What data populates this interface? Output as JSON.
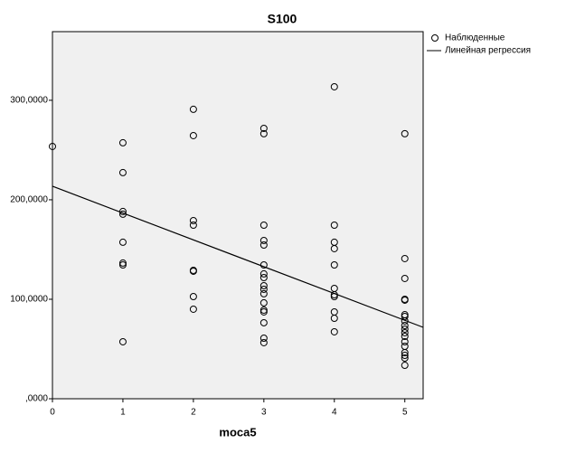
{
  "chart_data": {
    "type": "scatter",
    "title": "S100",
    "x_label": "moca5",
    "xlim": [
      0,
      5.26
    ],
    "xticks": [
      0,
      1,
      2,
      3,
      4,
      5
    ],
    "ylim": [
      0,
      369000
    ],
    "yticks": [
      {
        "value": 0,
        "label": ",0000"
      },
      {
        "value": 100000,
        "label": "100,0000"
      },
      {
        "value": 200000,
        "label": "200,0000"
      },
      {
        "value": 300000,
        "label": "300,0000"
      }
    ],
    "plot_background": "#f0f0f0",
    "series": [
      {
        "name": "Наблюденные",
        "type": "scatter",
        "color": "#000000",
        "x": [
          0,
          1,
          1,
          1,
          1,
          1,
          1,
          1,
          1,
          2,
          2,
          2,
          2,
          2,
          2,
          2,
          2,
          3,
          3,
          3,
          3,
          3,
          3,
          3,
          3,
          3,
          3,
          3,
          3,
          3,
          3,
          3,
          3,
          3,
          4,
          4,
          4,
          4,
          4,
          4,
          4,
          4,
          4,
          4,
          4,
          5,
          5,
          5,
          5,
          5,
          5,
          5,
          5,
          5,
          5,
          5,
          5,
          5,
          5,
          5,
          5,
          5,
          5
        ],
        "values": [
          253600,
          257300,
          227300,
          188200,
          185500,
          157300,
          136400,
          134500,
          57300,
          290900,
          264500,
          179100,
          174500,
          129100,
          128200,
          102700,
          90000,
          271800,
          266400,
          174500,
          159100,
          154500,
          134500,
          125500,
          121800,
          113600,
          110000,
          105500,
          96400,
          89100,
          87300,
          76400,
          60900,
          56400,
          313600,
          174500,
          157300,
          150900,
          134500,
          110900,
          104500,
          102700,
          87300,
          80900,
          67300,
          266400,
          140900,
          120900,
          100000,
          99100,
          84500,
          82700,
          78200,
          73600,
          70000,
          66400,
          62700,
          57300,
          52700,
          46400,
          43600,
          40900,
          33600
        ]
      },
      {
        "name": "Линейная регрессия",
        "type": "line",
        "color": "#000000",
        "x": [
          0,
          5.26
        ],
        "values": [
          213600,
          71800
        ]
      }
    ]
  }
}
